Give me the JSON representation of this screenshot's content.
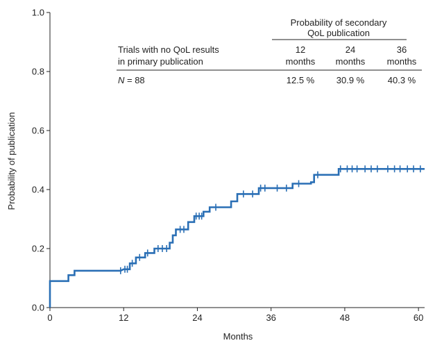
{
  "chart_data": {
    "type": "line",
    "step": true,
    "xlabel": "Months",
    "ylabel": "Probability of publication",
    "xlim": [
      0,
      61
    ],
    "ylim": [
      0,
      1.0
    ],
    "x_ticks": [
      0,
      12,
      24,
      36,
      48,
      60
    ],
    "y_ticks": [
      0.0,
      0.2,
      0.4,
      0.6,
      0.8,
      1.0
    ],
    "y_tick_labels": [
      "0.0",
      "0.2",
      "0.4",
      "0.6",
      "0.8",
      "1.0"
    ],
    "line_color": "#2a6fb5",
    "grid": false,
    "series": [
      {
        "steps": [
          [
            0,
            0.0
          ],
          [
            0,
            0.09
          ],
          [
            3.0,
            0.09
          ],
          [
            3.0,
            0.11
          ],
          [
            4.0,
            0.11
          ],
          [
            4.0,
            0.125
          ],
          [
            11.5,
            0.125
          ],
          [
            12.0,
            0.13
          ],
          [
            13.0,
            0.13
          ],
          [
            13.0,
            0.15
          ],
          [
            14.0,
            0.15
          ],
          [
            14.0,
            0.17
          ],
          [
            15.5,
            0.17
          ],
          [
            15.5,
            0.185
          ],
          [
            17.0,
            0.185
          ],
          [
            17.0,
            0.2
          ],
          [
            19.5,
            0.2
          ],
          [
            19.5,
            0.22
          ],
          [
            20.0,
            0.22
          ],
          [
            20.0,
            0.245
          ],
          [
            20.5,
            0.245
          ],
          [
            20.5,
            0.265
          ],
          [
            22.5,
            0.265
          ],
          [
            22.5,
            0.29
          ],
          [
            23.5,
            0.29
          ],
          [
            23.5,
            0.31
          ],
          [
            25.0,
            0.31
          ],
          [
            25.0,
            0.325
          ],
          [
            26.0,
            0.325
          ],
          [
            26.0,
            0.34
          ],
          [
            29.5,
            0.34
          ],
          [
            29.5,
            0.36
          ],
          [
            30.5,
            0.36
          ],
          [
            30.5,
            0.385
          ],
          [
            34.0,
            0.385
          ],
          [
            34.0,
            0.405
          ],
          [
            39.5,
            0.405
          ],
          [
            39.5,
            0.42
          ],
          [
            42.5,
            0.42
          ],
          [
            42.5,
            0.425
          ],
          [
            43.0,
            0.425
          ],
          [
            43.0,
            0.45
          ],
          [
            47.0,
            0.45
          ],
          [
            47.0,
            0.47
          ],
          [
            61.0,
            0.47
          ]
        ],
        "censored": [
          [
            11.5,
            0.125
          ],
          [
            12.2,
            0.13
          ],
          [
            12.6,
            0.13
          ],
          [
            13.4,
            0.15
          ],
          [
            14.6,
            0.17
          ],
          [
            15.9,
            0.185
          ],
          [
            17.6,
            0.2
          ],
          [
            18.3,
            0.2
          ],
          [
            19.0,
            0.2
          ],
          [
            21.2,
            0.265
          ],
          [
            21.8,
            0.265
          ],
          [
            23.8,
            0.31
          ],
          [
            24.3,
            0.31
          ],
          [
            24.7,
            0.31
          ],
          [
            27.0,
            0.34
          ],
          [
            31.5,
            0.385
          ],
          [
            33.0,
            0.385
          ],
          [
            34.3,
            0.405
          ],
          [
            35.0,
            0.405
          ],
          [
            37.0,
            0.405
          ],
          [
            38.5,
            0.405
          ],
          [
            40.5,
            0.42
          ],
          [
            43.6,
            0.45
          ],
          [
            47.3,
            0.47
          ],
          [
            48.4,
            0.47
          ],
          [
            49.2,
            0.47
          ],
          [
            50.0,
            0.47
          ],
          [
            51.3,
            0.47
          ],
          [
            52.3,
            0.47
          ],
          [
            53.3,
            0.47
          ],
          [
            55.0,
            0.47
          ],
          [
            56.1,
            0.47
          ],
          [
            57.0,
            0.47
          ],
          [
            58.2,
            0.47
          ],
          [
            59.2,
            0.47
          ],
          [
            60.3,
            0.47
          ]
        ]
      }
    ],
    "annotation_table": {
      "header_title_line1": "Probability of secondary",
      "header_title_line2": "QoL publication",
      "row_label_line1": "Trials with no QoL results",
      "row_label_line2": "in primary publication",
      "n_label": "N",
      "n_value": " = 88",
      "columns": [
        {
          "number": "12",
          "unit": "months",
          "value": "12.5 %"
        },
        {
          "number": "24",
          "unit": "months",
          "value": "30.9 %"
        },
        {
          "number": "36",
          "unit": "months",
          "value": "40.3 %"
        }
      ]
    }
  }
}
